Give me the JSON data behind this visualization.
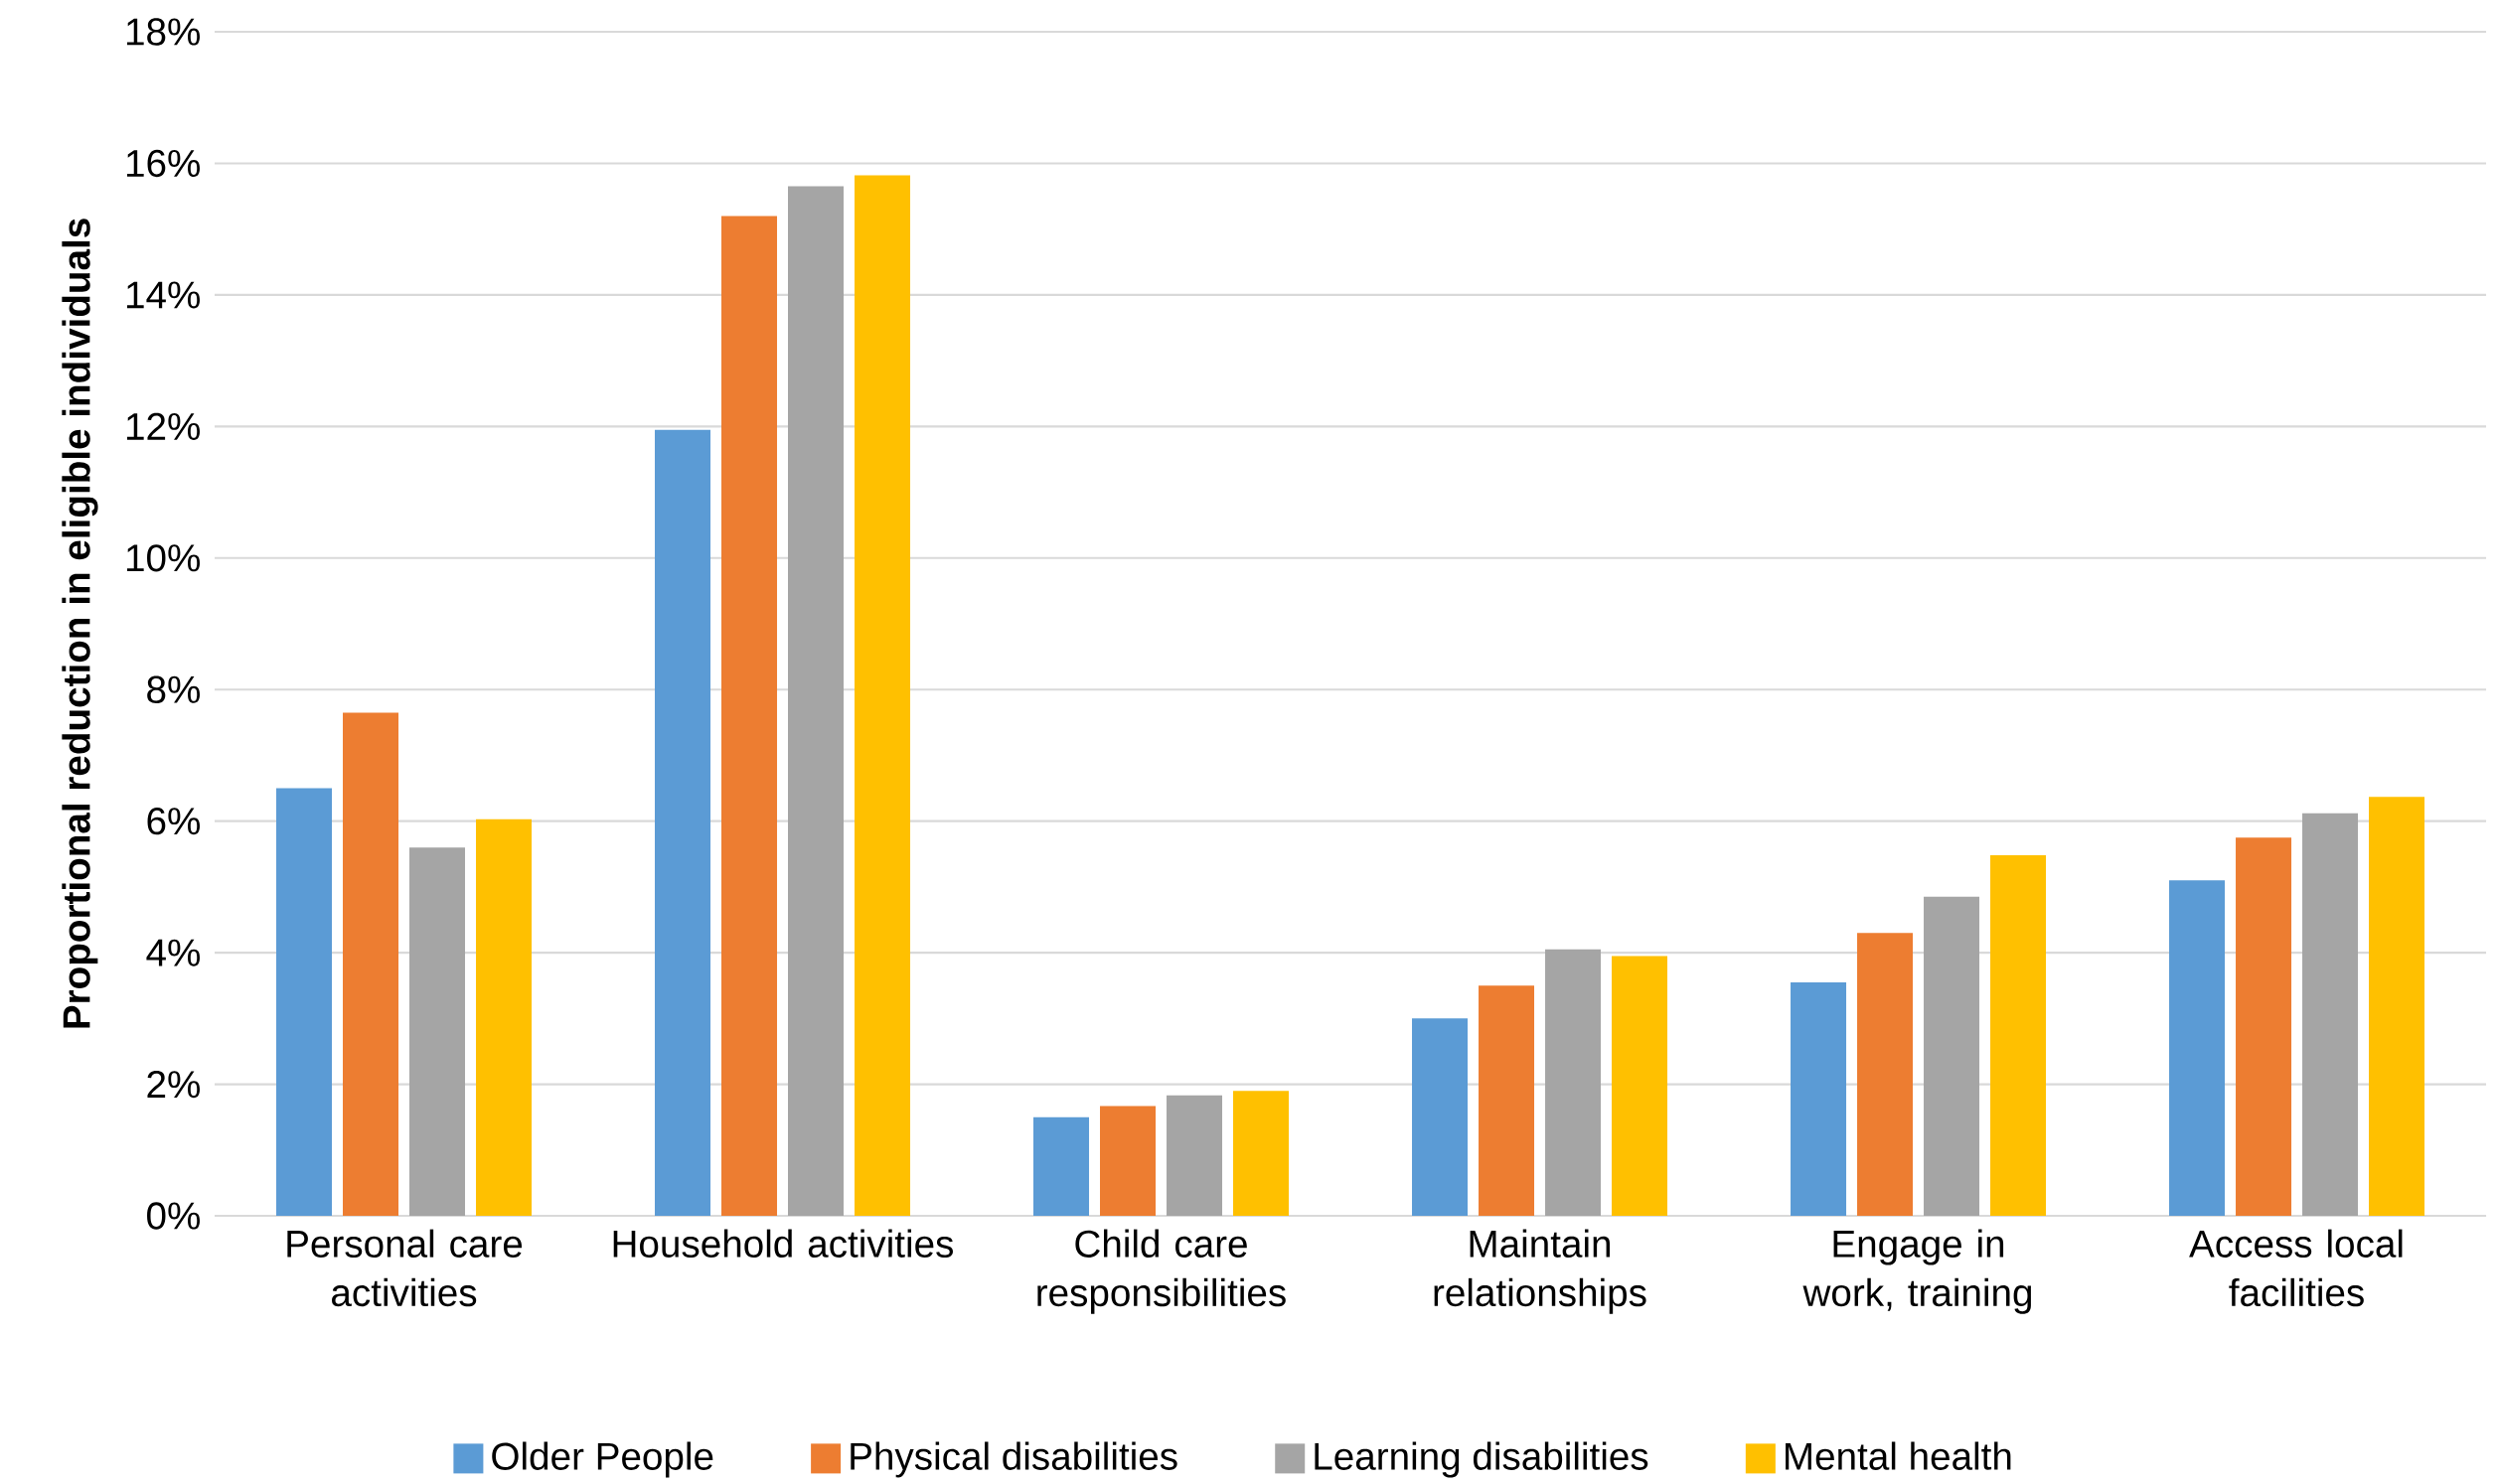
{
  "chart_data": {
    "type": "bar",
    "ylabel": "Proportional  reduction in eligible individuals",
    "categories": [
      "Personal care activities",
      "Household activities",
      "Child care responsibilities",
      "Maintain relationships",
      "Engage in work, training",
      "Access local facilities"
    ],
    "series": [
      {
        "name": "Older People",
        "color": "#5b9bd5",
        "values": [
          6.5,
          11.95,
          1.5,
          3.0,
          3.55,
          5.1
        ]
      },
      {
        "name": "Physical disabilities",
        "color": "#ed7d31",
        "values": [
          7.65,
          15.2,
          1.67,
          3.5,
          4.3,
          5.75
        ]
      },
      {
        "name": "Learning disabilities",
        "color": "#a5a5a5",
        "values": [
          5.6,
          15.65,
          1.83,
          4.05,
          4.85,
          6.12
        ]
      },
      {
        "name": "Mental health",
        "color": "#ffc000",
        "values": [
          6.03,
          15.82,
          1.9,
          3.95,
          5.48,
          6.37
        ]
      }
    ],
    "ylim": [
      0,
      18
    ],
    "yticks": [
      {
        "value": 0,
        "label": "0%"
      },
      {
        "value": 2,
        "label": "2%"
      },
      {
        "value": 4,
        "label": "4%"
      },
      {
        "value": 6,
        "label": "6%"
      },
      {
        "value": 8,
        "label": "8%"
      },
      {
        "value": 10,
        "label": "10%"
      },
      {
        "value": 12,
        "label": "12%"
      },
      {
        "value": 14,
        "label": "14%"
      },
      {
        "value": 16,
        "label": "16%"
      },
      {
        "value": 18,
        "label": "18%"
      }
    ],
    "grid": "y",
    "legend": "bottom"
  }
}
